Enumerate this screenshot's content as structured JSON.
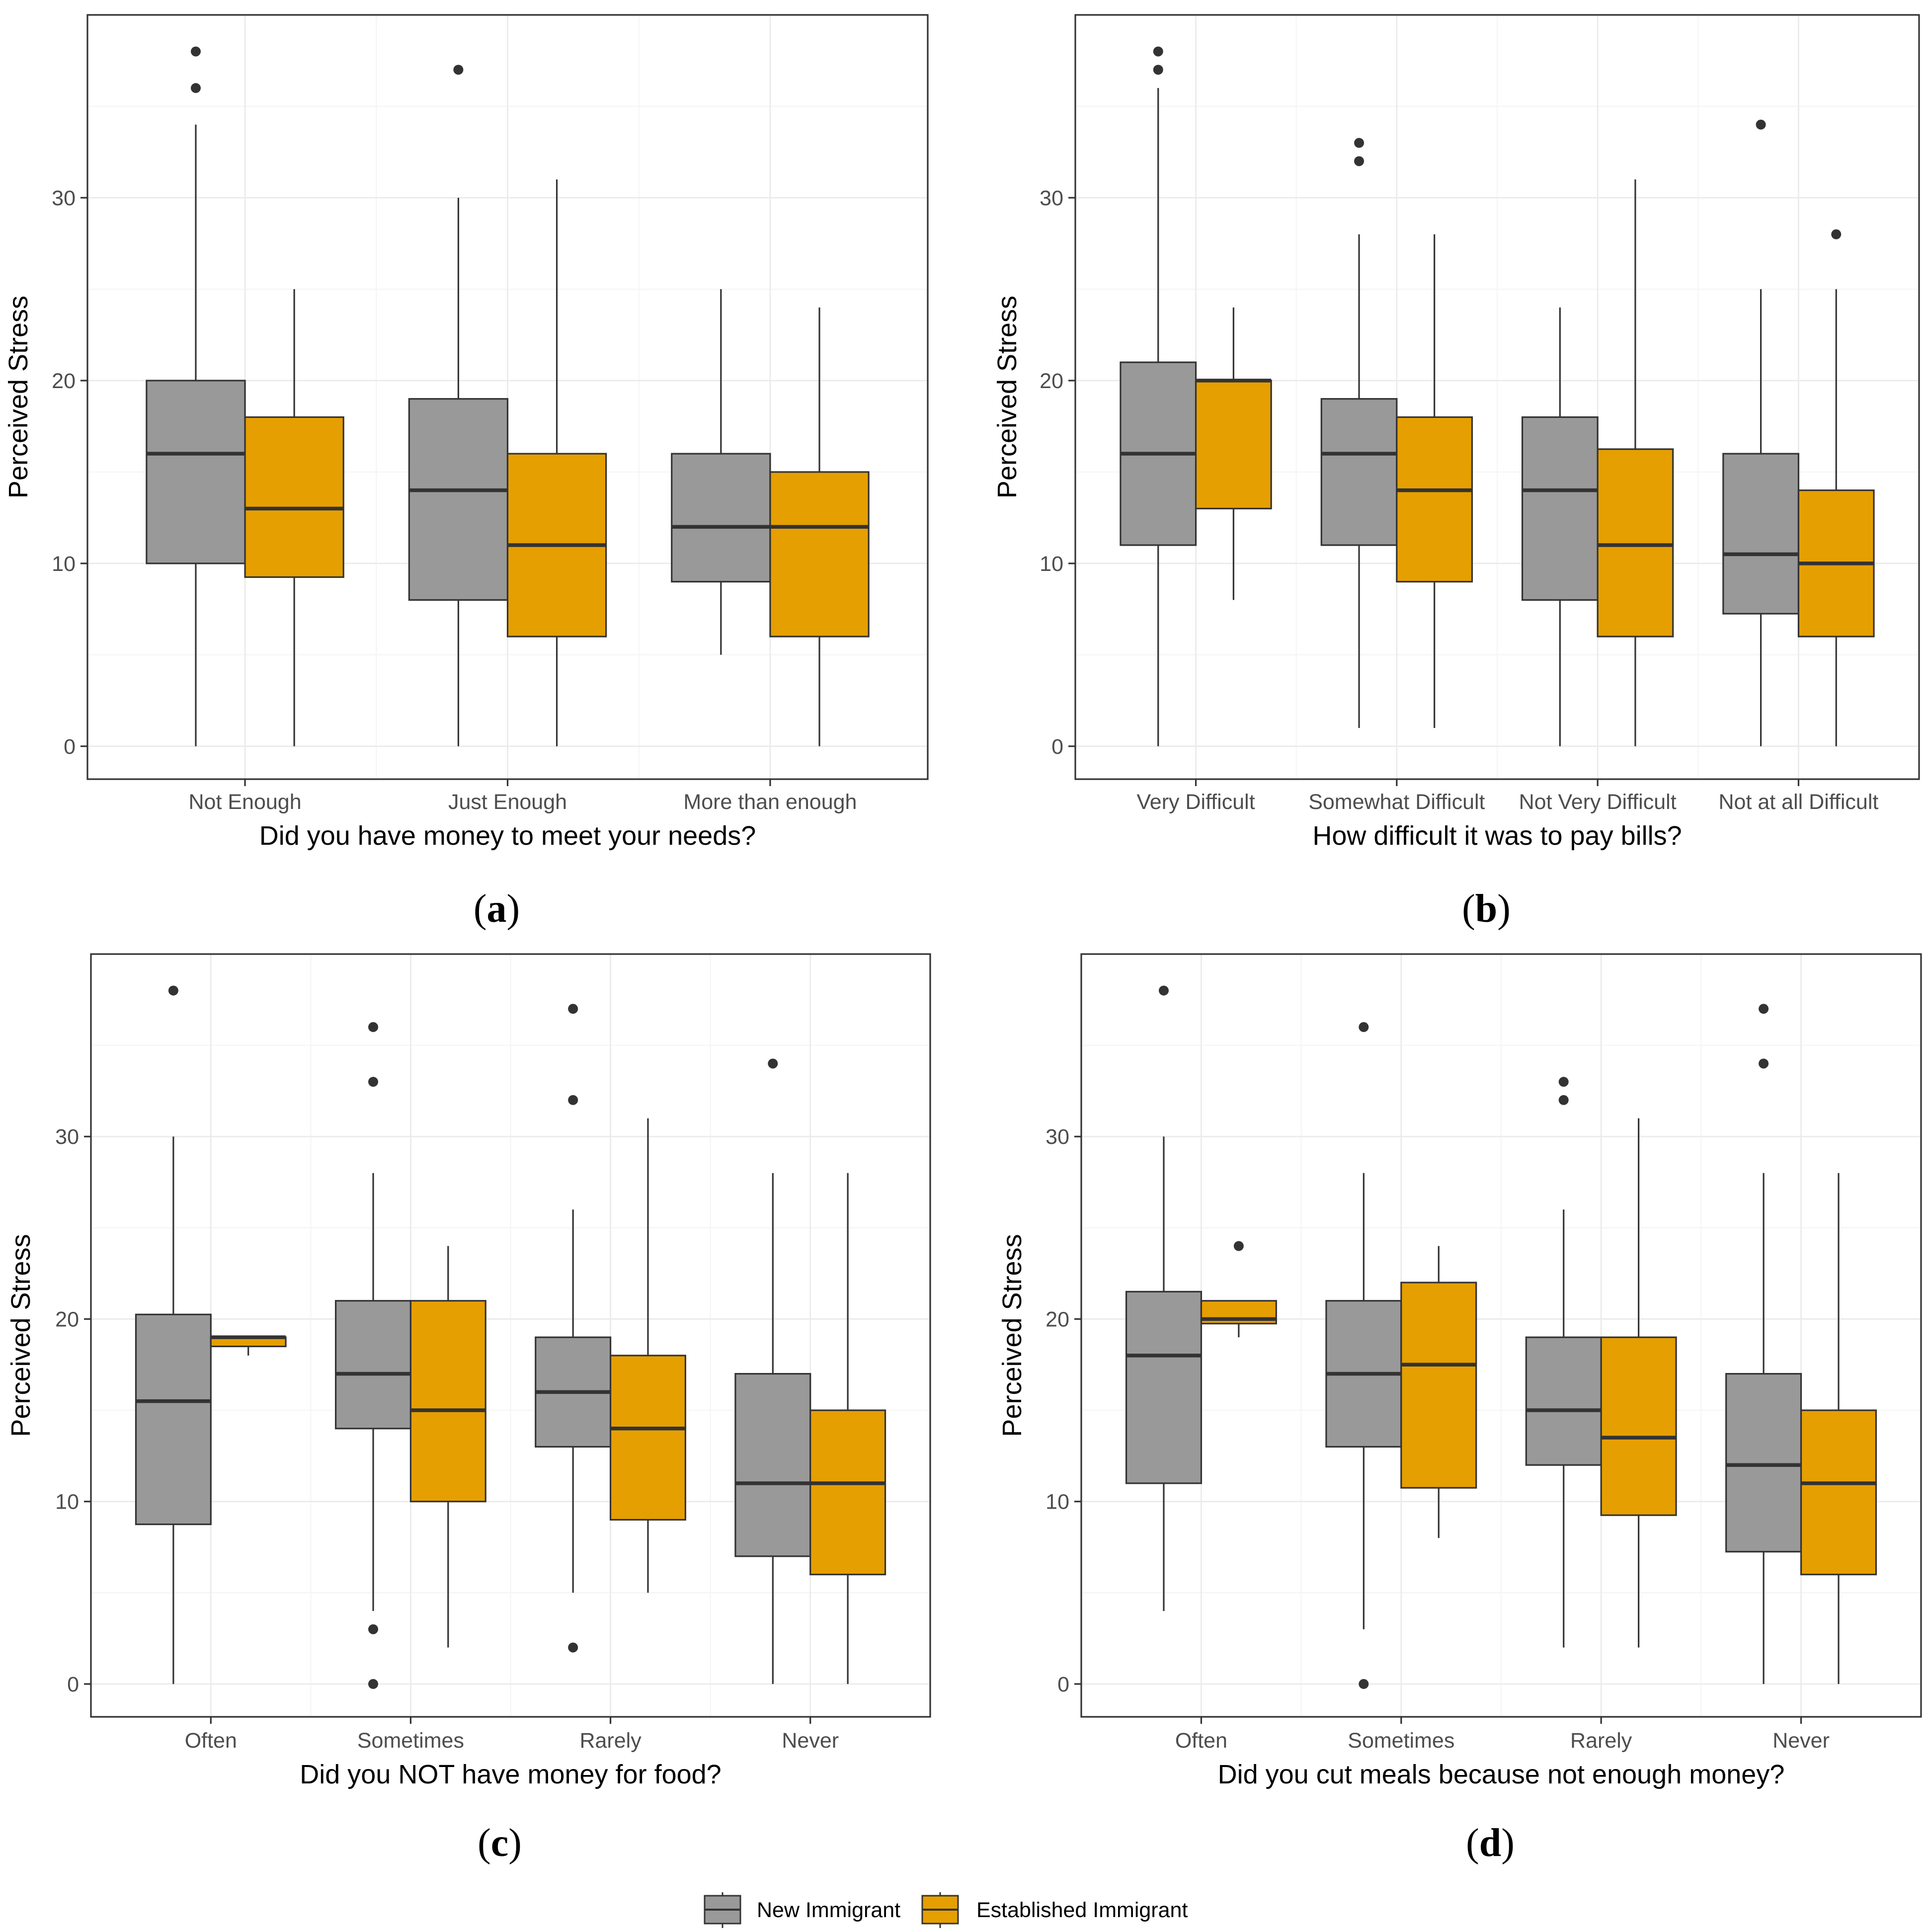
{
  "colors": {
    "new_immigrant": "#999999",
    "established_immigrant": "#E69F00",
    "grid_major": "#ebebeb",
    "grid_minor": "#f5f5f5",
    "panel_border": "#333333",
    "median": "#333333",
    "outlier": "#333333"
  },
  "legend": {
    "position": "bottom",
    "items": [
      {
        "name": "New Immigrant",
        "color_key": "new_immigrant"
      },
      {
        "name": "Established Immigrant",
        "color_key": "established_immigrant"
      }
    ]
  },
  "chart_data": [
    {
      "type": "boxplot",
      "panel_label": "a",
      "title": "",
      "xlabel": "Did you have money to meet your needs?",
      "ylabel": "Perceived Stress",
      "ylim": [
        -1.8,
        40
      ],
      "yticks": [
        0,
        10,
        20,
        30
      ],
      "grid": true,
      "categories": [
        "Not Enough",
        "Just Enough",
        "More than enough"
      ],
      "series": [
        {
          "name": "New Immigrant",
          "boxes": [
            {
              "lower_whisker": 0,
              "q1": 10,
              "median": 16,
              "q3": 20,
              "upper_whisker": 34,
              "outliers": [
                36,
                38
              ]
            },
            {
              "lower_whisker": 0,
              "q1": 8,
              "median": 14,
              "q3": 19,
              "upper_whisker": 30,
              "outliers": [
                37
              ]
            },
            {
              "lower_whisker": 5,
              "q1": 9,
              "median": 12,
              "q3": 16,
              "upper_whisker": 25,
              "outliers": []
            }
          ]
        },
        {
          "name": "Established Immigrant",
          "boxes": [
            {
              "lower_whisker": 0,
              "q1": 9.25,
              "median": 13,
              "q3": 18,
              "upper_whisker": 25,
              "outliers": []
            },
            {
              "lower_whisker": 0,
              "q1": 6,
              "median": 11,
              "q3": 16,
              "upper_whisker": 31,
              "outliers": []
            },
            {
              "lower_whisker": 0,
              "q1": 6,
              "median": 12,
              "q3": 15,
              "upper_whisker": 24,
              "outliers": []
            }
          ]
        }
      ]
    },
    {
      "type": "boxplot",
      "panel_label": "b",
      "title": "",
      "xlabel": "How difficult it was to pay bills?",
      "ylabel": "Perceived Stress",
      "ylim": [
        -1.8,
        40
      ],
      "yticks": [
        0,
        10,
        20,
        30
      ],
      "grid": true,
      "categories": [
        "Very Difficult",
        "Somewhat Difficult",
        "Not Very Difficult",
        "Not at all Difficult"
      ],
      "series": [
        {
          "name": "New Immigrant",
          "boxes": [
            {
              "lower_whisker": 0,
              "q1": 11,
              "median": 16,
              "q3": 21,
              "upper_whisker": 36,
              "outliers": [
                37,
                38
              ]
            },
            {
              "lower_whisker": 1,
              "q1": 11,
              "median": 16,
              "q3": 19,
              "upper_whisker": 28,
              "outliers": [
                32,
                33
              ]
            },
            {
              "lower_whisker": 0,
              "q1": 8,
              "median": 14,
              "q3": 18,
              "upper_whisker": 24,
              "outliers": []
            },
            {
              "lower_whisker": 0,
              "q1": 7.25,
              "median": 10.5,
              "q3": 16,
              "upper_whisker": 25,
              "outliers": [
                34
              ]
            }
          ]
        },
        {
          "name": "Established Immigrant",
          "boxes": [
            {
              "lower_whisker": 8,
              "q1": 13,
              "median": 20,
              "q3": 20,
              "upper_whisker": 24,
              "outliers": []
            },
            {
              "lower_whisker": 1,
              "q1": 9,
              "median": 14,
              "q3": 18,
              "upper_whisker": 28,
              "outliers": []
            },
            {
              "lower_whisker": 0,
              "q1": 6,
              "median": 11,
              "q3": 16.25,
              "upper_whisker": 31,
              "outliers": []
            },
            {
              "lower_whisker": 0,
              "q1": 6,
              "median": 10,
              "q3": 14,
              "upper_whisker": 25,
              "outliers": [
                28
              ]
            }
          ]
        }
      ]
    },
    {
      "type": "boxplot",
      "panel_label": "c",
      "title": "",
      "xlabel": "Did you NOT have money for food?",
      "ylabel": "Perceived Stress",
      "ylim": [
        -1.8,
        40
      ],
      "yticks": [
        0,
        10,
        20,
        30
      ],
      "grid": true,
      "categories": [
        "Often",
        "Sometimes",
        "Rarely",
        "Never"
      ],
      "series": [
        {
          "name": "New Immigrant",
          "boxes": [
            {
              "lower_whisker": 0,
              "q1": 8.75,
              "median": 15.5,
              "q3": 20.25,
              "upper_whisker": 30,
              "outliers": [
                38
              ]
            },
            {
              "lower_whisker": 4,
              "q1": 14,
              "median": 17,
              "q3": 21,
              "upper_whisker": 28,
              "outliers": [
                0,
                3,
                33,
                36
              ]
            },
            {
              "lower_whisker": 5,
              "q1": 13,
              "median": 16,
              "q3": 19,
              "upper_whisker": 26,
              "outliers": [
                2,
                32,
                37
              ]
            },
            {
              "lower_whisker": 0,
              "q1": 7,
              "median": 11,
              "q3": 17,
              "upper_whisker": 28,
              "outliers": [
                34
              ]
            }
          ]
        },
        {
          "name": "Established Immigrant",
          "boxes": [
            {
              "lower_whisker": 18,
              "q1": 18.5,
              "median": 19,
              "q3": 19,
              "upper_whisker": 19,
              "outliers": []
            },
            {
              "lower_whisker": 2,
              "q1": 10,
              "median": 15,
              "q3": 21,
              "upper_whisker": 24,
              "outliers": []
            },
            {
              "lower_whisker": 5,
              "q1": 9,
              "median": 14,
              "q3": 18,
              "upper_whisker": 31,
              "outliers": []
            },
            {
              "lower_whisker": 0,
              "q1": 6,
              "median": 11,
              "q3": 15,
              "upper_whisker": 28,
              "outliers": []
            }
          ]
        }
      ]
    },
    {
      "type": "boxplot",
      "panel_label": "d",
      "title": "",
      "xlabel": "Did you cut meals because not enough money?",
      "ylabel": "Perceived Stress",
      "ylim": [
        -1.8,
        40
      ],
      "yticks": [
        0,
        10,
        20,
        30
      ],
      "grid": true,
      "categories": [
        "Often",
        "Sometimes",
        "Rarely",
        "Never"
      ],
      "series": [
        {
          "name": "New Immigrant",
          "boxes": [
            {
              "lower_whisker": 4,
              "q1": 11,
              "median": 18,
              "q3": 21.5,
              "upper_whisker": 30,
              "outliers": [
                38
              ]
            },
            {
              "lower_whisker": 3,
              "q1": 13,
              "median": 17,
              "q3": 21,
              "upper_whisker": 28,
              "outliers": [
                0,
                36
              ]
            },
            {
              "lower_whisker": 2,
              "q1": 12,
              "median": 15,
              "q3": 19,
              "upper_whisker": 26,
              "outliers": [
                32,
                33
              ]
            },
            {
              "lower_whisker": 0,
              "q1": 7.25,
              "median": 12,
              "q3": 17,
              "upper_whisker": 28,
              "outliers": [
                34,
                37
              ]
            }
          ]
        },
        {
          "name": "Established Immigrant",
          "boxes": [
            {
              "lower_whisker": 19,
              "q1": 19.75,
              "median": 20,
              "q3": 21,
              "upper_whisker": 21,
              "outliers": [
                24
              ]
            },
            {
              "lower_whisker": 8,
              "q1": 10.75,
              "median": 17.5,
              "q3": 22,
              "upper_whisker": 24,
              "outliers": []
            },
            {
              "lower_whisker": 2,
              "q1": 9.25,
              "median": 13.5,
              "q3": 19,
              "upper_whisker": 31,
              "outliers": []
            },
            {
              "lower_whisker": 0,
              "q1": 6,
              "median": 11,
              "q3": 15,
              "upper_whisker": 28,
              "outliers": []
            }
          ]
        }
      ]
    }
  ]
}
